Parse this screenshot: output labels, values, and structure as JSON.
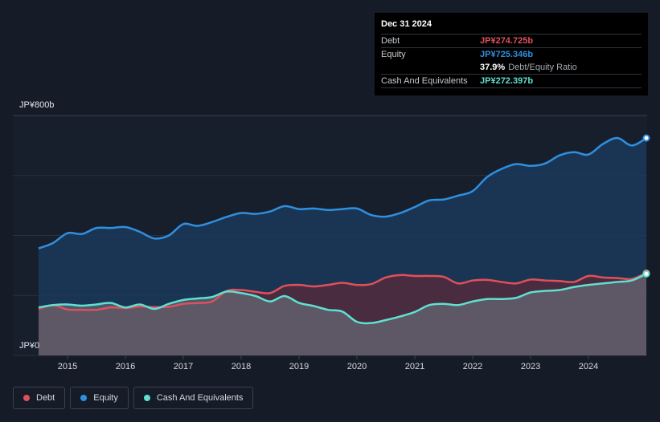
{
  "tooltip": {
    "date": "Dec 31 2024",
    "debt_label": "Debt",
    "debt_value": "JP¥274.725b",
    "equity_label": "Equity",
    "equity_value": "JP¥725.346b",
    "ratio_value": "37.9%",
    "ratio_label": "Debt/Equity Ratio",
    "cash_label": "Cash And Equivalents",
    "cash_value": "JP¥272.397b"
  },
  "legend": {
    "debt": "Debt",
    "equity": "Equity",
    "cash": "Cash And Equivalents"
  },
  "colors": {
    "debt": "#e0505b",
    "equity": "#2f8fe0",
    "cash": "#5fe0d0",
    "background": "#151b27",
    "plot_background": "#181f2c"
  },
  "chart_data": {
    "type": "area",
    "y_unit": "JP¥ billion",
    "ylim": [
      0,
      800
    ],
    "y_tick_labels": [
      "JP¥800b",
      "JP¥0"
    ],
    "x_tick_labels": [
      "2015",
      "2016",
      "2017",
      "2018",
      "2019",
      "2020",
      "2021",
      "2022",
      "2023",
      "2024"
    ],
    "x_range": [
      2014.5,
      2025.0
    ],
    "grid": true,
    "series": [
      {
        "name": "Debt",
        "points": [
          [
            2014.5,
            155
          ],
          [
            2014.75,
            168
          ],
          [
            2015.0,
            153
          ],
          [
            2015.25,
            152
          ],
          [
            2015.5,
            152
          ],
          [
            2015.75,
            160
          ],
          [
            2016.0,
            158
          ],
          [
            2016.25,
            163
          ],
          [
            2016.5,
            161
          ],
          [
            2016.75,
            162
          ],
          [
            2017.0,
            172
          ],
          [
            2017.25,
            175
          ],
          [
            2017.5,
            180
          ],
          [
            2017.75,
            215
          ],
          [
            2018.0,
            218
          ],
          [
            2018.25,
            212
          ],
          [
            2018.5,
            208
          ],
          [
            2018.75,
            232
          ],
          [
            2019.0,
            235
          ],
          [
            2019.25,
            230
          ],
          [
            2019.5,
            235
          ],
          [
            2019.75,
            242
          ],
          [
            2020.0,
            235
          ],
          [
            2020.25,
            238
          ],
          [
            2020.5,
            260
          ],
          [
            2020.75,
            268
          ],
          [
            2021.0,
            265
          ],
          [
            2021.25,
            265
          ],
          [
            2021.5,
            262
          ],
          [
            2021.75,
            240
          ],
          [
            2022.0,
            250
          ],
          [
            2022.25,
            252
          ],
          [
            2022.5,
            245
          ],
          [
            2022.75,
            240
          ],
          [
            2023.0,
            253
          ],
          [
            2023.25,
            250
          ],
          [
            2023.5,
            248
          ],
          [
            2023.75,
            245
          ],
          [
            2024.0,
            265
          ],
          [
            2024.25,
            260
          ],
          [
            2024.5,
            258
          ],
          [
            2024.75,
            255
          ],
          [
            2025.0,
            275
          ]
        ]
      },
      {
        "name": "Equity",
        "points": [
          [
            2014.5,
            357
          ],
          [
            2014.75,
            375
          ],
          [
            2015.0,
            408
          ],
          [
            2015.25,
            405
          ],
          [
            2015.5,
            425
          ],
          [
            2015.75,
            425
          ],
          [
            2016.0,
            428
          ],
          [
            2016.25,
            412
          ],
          [
            2016.5,
            390
          ],
          [
            2016.75,
            400
          ],
          [
            2017.0,
            438
          ],
          [
            2017.25,
            432
          ],
          [
            2017.5,
            445
          ],
          [
            2017.75,
            462
          ],
          [
            2018.0,
            475
          ],
          [
            2018.25,
            472
          ],
          [
            2018.5,
            480
          ],
          [
            2018.75,
            498
          ],
          [
            2019.0,
            488
          ],
          [
            2019.25,
            490
          ],
          [
            2019.5,
            485
          ],
          [
            2019.75,
            488
          ],
          [
            2020.0,
            490
          ],
          [
            2020.25,
            468
          ],
          [
            2020.5,
            463
          ],
          [
            2020.75,
            475
          ],
          [
            2021.0,
            495
          ],
          [
            2021.25,
            517
          ],
          [
            2021.5,
            520
          ],
          [
            2021.75,
            533
          ],
          [
            2022.0,
            548
          ],
          [
            2022.25,
            595
          ],
          [
            2022.5,
            622
          ],
          [
            2022.75,
            638
          ],
          [
            2023.0,
            632
          ],
          [
            2023.25,
            640
          ],
          [
            2023.5,
            667
          ],
          [
            2023.75,
            678
          ],
          [
            2024.0,
            670
          ],
          [
            2024.25,
            705
          ],
          [
            2024.5,
            725
          ],
          [
            2024.75,
            700
          ],
          [
            2025.0,
            725
          ]
        ]
      },
      {
        "name": "Cash And Equivalents",
        "points": [
          [
            2014.5,
            160
          ],
          [
            2014.75,
            168
          ],
          [
            2015.0,
            170
          ],
          [
            2015.25,
            166
          ],
          [
            2015.5,
            170
          ],
          [
            2015.75,
            175
          ],
          [
            2016.0,
            160
          ],
          [
            2016.25,
            170
          ],
          [
            2016.5,
            155
          ],
          [
            2016.75,
            172
          ],
          [
            2017.0,
            185
          ],
          [
            2017.25,
            190
          ],
          [
            2017.5,
            195
          ],
          [
            2017.75,
            213
          ],
          [
            2018.0,
            208
          ],
          [
            2018.25,
            198
          ],
          [
            2018.5,
            180
          ],
          [
            2018.75,
            198
          ],
          [
            2019.0,
            175
          ],
          [
            2019.25,
            165
          ],
          [
            2019.5,
            152
          ],
          [
            2019.75,
            146
          ],
          [
            2020.0,
            112
          ],
          [
            2020.25,
            108
          ],
          [
            2020.5,
            118
          ],
          [
            2020.75,
            130
          ],
          [
            2021.0,
            145
          ],
          [
            2021.25,
            168
          ],
          [
            2021.5,
            172
          ],
          [
            2021.75,
            168
          ],
          [
            2022.0,
            180
          ],
          [
            2022.25,
            188
          ],
          [
            2022.5,
            188
          ],
          [
            2022.75,
            192
          ],
          [
            2023.0,
            210
          ],
          [
            2023.25,
            215
          ],
          [
            2023.5,
            218
          ],
          [
            2023.75,
            228
          ],
          [
            2024.0,
            235
          ],
          [
            2024.25,
            240
          ],
          [
            2024.5,
            245
          ],
          [
            2024.75,
            250
          ],
          [
            2025.0,
            272
          ]
        ]
      }
    ]
  }
}
